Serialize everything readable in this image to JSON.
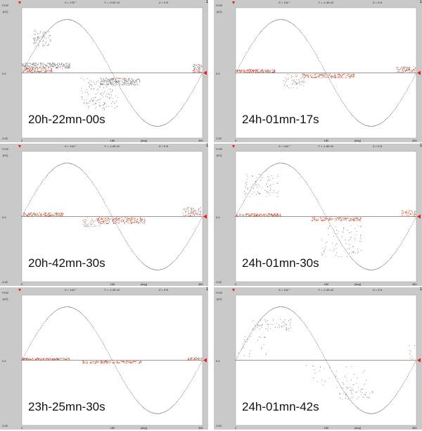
{
  "chart_data": [
    {
      "type": "scatter",
      "timestamp": "20h-22mn-00s",
      "header": {
        "x": "X = 176 °",
        "y": "Y = -0.02 nC",
        "z": "Z =  0 N"
      },
      "corner_label": "1",
      "ylim": [
        -3.92,
        3.92
      ],
      "yticks": {
        "top": "+3.92",
        "zero": "0.0",
        "bottom": "-3.92"
      },
      "y_unit": "[nC]",
      "xlim": [
        0,
        360
      ],
      "xticks": [
        "0",
        "180",
        "360"
      ],
      "xlabel": "[deg]",
      "clusters": [
        {
          "x0": 0,
          "x1": 95,
          "y0": 0.28,
          "y1": 0.62,
          "n": 260
        },
        {
          "x0": 0,
          "x1": 60,
          "y0": 0.05,
          "y1": 0.28,
          "n": 120
        },
        {
          "x0": 155,
          "x1": 235,
          "y0": -0.72,
          "y1": -0.28,
          "n": 240
        },
        {
          "x0": 340,
          "x1": 358,
          "y0": 0.0,
          "y1": 0.55,
          "n": 70
        },
        {
          "x0": 22,
          "x1": 58,
          "y0": 1.6,
          "y1": 2.6,
          "n": 80
        },
        {
          "x0": 118,
          "x1": 190,
          "y0": -2.2,
          "y1": -0.3,
          "n": 150
        }
      ]
    },
    {
      "type": "scatter",
      "timestamp": "24h-01mn-17s",
      "header": {
        "x": "X = 144 °",
        "y": "Y = -1.40 nC",
        "z": "Z =  0 N"
      },
      "corner_label": "1",
      "ylim": [
        -3.92,
        3.92
      ],
      "yticks": {
        "top": "+3.92",
        "zero": "0.0",
        "bottom": "-3.92"
      },
      "y_unit": "[nC]",
      "xlim": [
        0,
        360
      ],
      "xticks": [
        "0",
        "180",
        "360"
      ],
      "xlabel": "[deg]",
      "clusters": [
        {
          "x0": 0,
          "x1": 78,
          "y0": 0.03,
          "y1": 0.22,
          "n": 180
        },
        {
          "x0": 130,
          "x1": 240,
          "y0": -0.3,
          "y1": -0.03,
          "n": 200
        },
        {
          "x0": 95,
          "x1": 140,
          "y0": -0.9,
          "y1": -0.05,
          "n": 60
        },
        {
          "x0": 320,
          "x1": 358,
          "y0": 0.03,
          "y1": 0.4,
          "n": 90
        }
      ]
    },
    {
      "type": "scatter",
      "timestamp": "20h-42mn-30s",
      "header": {
        "x": "X = 144 °",
        "y": "Y = -1.40 nC",
        "z": "Z =  0 N"
      },
      "corner_label": "1",
      "ylim": [
        -3.92,
        3.92
      ],
      "yticks": {
        "top": "+3.92",
        "zero": "0.0",
        "bottom": "-3.92"
      },
      "y_unit": "[nC]",
      "xlim": [
        0,
        360
      ],
      "xticks": [
        "0",
        "180",
        "360"
      ],
      "xlabel": "[deg]",
      "clusters": [
        {
          "x0": 0,
          "x1": 82,
          "y0": 0.03,
          "y1": 0.25,
          "n": 170
        },
        {
          "x0": 150,
          "x1": 245,
          "y0": -0.42,
          "y1": -0.03,
          "n": 230
        },
        {
          "x0": 120,
          "x1": 160,
          "y0": -0.6,
          "y1": -0.05,
          "n": 60
        },
        {
          "x0": 320,
          "x1": 358,
          "y0": 0.03,
          "y1": 0.6,
          "n": 90
        }
      ]
    },
    {
      "type": "scatter",
      "timestamp": "24h-01mn-30s",
      "header": {
        "x": "X = 144 °",
        "y": "Y = -1.60 nC",
        "z": "Z =  0 N"
      },
      "corner_label": "1",
      "ylim": [
        -3.92,
        3.92
      ],
      "yticks": {
        "top": "+3.92",
        "zero": "0.0",
        "bottom": "-3.92"
      },
      "y_unit": "[nC]",
      "xlim": [
        0,
        360
      ],
      "xticks": [
        "0",
        "180",
        "360"
      ],
      "xlabel": "[deg]",
      "clusters": [
        {
          "x0": 0,
          "x1": 90,
          "y0": 0.03,
          "y1": 0.2,
          "n": 170
        },
        {
          "x0": 150,
          "x1": 250,
          "y0": -0.25,
          "y1": -0.03,
          "n": 170
        },
        {
          "x0": 15,
          "x1": 85,
          "y0": 1.2,
          "y1": 2.6,
          "n": 80
        },
        {
          "x0": 170,
          "x1": 250,
          "y0": -2.4,
          "y1": -0.5,
          "n": 80
        },
        {
          "x0": 330,
          "x1": 358,
          "y0": 0.03,
          "y1": 0.4,
          "n": 60
        }
      ]
    },
    {
      "type": "scatter",
      "timestamp": "23h-25mn-30s",
      "header": {
        "x": "X = 144 °",
        "y": "Y = -1.40 nC",
        "z": "Z =  0 N"
      },
      "corner_label": "1",
      "ylim": [
        -3.92,
        3.92
      ],
      "yticks": {
        "top": "+3.92",
        "zero": "0.0",
        "bottom": "-3.92"
      },
      "y_unit": "[nC]",
      "xlim": [
        0,
        360
      ],
      "xticks": [
        "0",
        "180",
        "360"
      ],
      "xlabel": "[deg]",
      "clusters": [
        {
          "x0": 0,
          "x1": 95,
          "y0": 0.02,
          "y1": 0.15,
          "n": 170
        },
        {
          "x0": 120,
          "x1": 240,
          "y0": -0.18,
          "y1": -0.02,
          "n": 170
        },
        {
          "x0": 330,
          "x1": 358,
          "y0": 0.02,
          "y1": 0.18,
          "n": 50
        }
      ]
    },
    {
      "type": "scatter",
      "timestamp": "24h-01mn-42s",
      "header": {
        "x": "X = 144 °",
        "y": "Y = -1.40 nC",
        "z": "Z =  0 N"
      },
      "corner_label": "1",
      "ylim": [
        -3.92,
        3.92
      ],
      "yticks": {
        "top": "+3.92",
        "zero": "0.0",
        "bottom": "-3.92"
      },
      "y_unit": "[nC]",
      "xlim": [
        0,
        360
      ],
      "xticks": [
        "0",
        "180",
        "360"
      ],
      "xlabel": "[deg]",
      "clusters": [
        {
          "x0": 30,
          "x1": 110,
          "y0": 1.8,
          "y1": 2.5,
          "n": 70
        },
        {
          "x0": 5,
          "x1": 60,
          "y0": 0.2,
          "y1": 1.5,
          "n": 30
        },
        {
          "x0": 200,
          "x1": 275,
          "y0": -2.4,
          "y1": -1.6,
          "n": 60
        },
        {
          "x0": 140,
          "x1": 260,
          "y0": -1.5,
          "y1": -0.3,
          "n": 40
        },
        {
          "x0": 345,
          "x1": 358,
          "y0": 0.1,
          "y1": 0.9,
          "n": 10
        }
      ]
    }
  ]
}
